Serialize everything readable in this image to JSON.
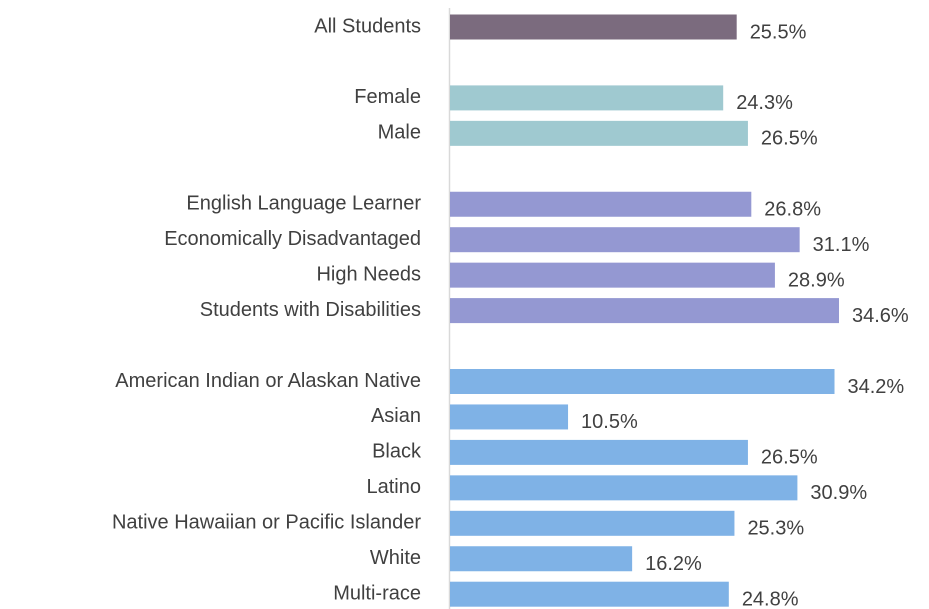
{
  "chart_data": {
    "type": "bar",
    "orientation": "horizontal",
    "categories": [
      "All Students",
      null,
      "Female",
      "Male",
      null,
      "English Language Learner",
      "Economically Disadvantaged",
      "High Needs",
      "Students with Disabilities",
      null,
      "American Indian or Alaskan Native",
      "Asian",
      "Black",
      "Latino",
      "Native Hawaiian or Pacific Islander",
      "White",
      "Multi-race"
    ],
    "values": [
      25.5,
      null,
      24.3,
      26.5,
      null,
      26.8,
      31.1,
      28.9,
      34.6,
      null,
      34.2,
      10.5,
      26.5,
      30.9,
      25.3,
      16.2,
      24.8
    ],
    "value_labels": [
      "25.5%",
      null,
      "24.3%",
      "26.5%",
      null,
      "26.8%",
      "31.1%",
      "28.9%",
      "34.6%",
      null,
      "34.2%",
      "10.5%",
      "26.5%",
      "30.9%",
      "25.3%",
      "16.2%",
      "24.8%"
    ],
    "colors": [
      "#7b6b7e",
      null,
      "#9fc9d0",
      "#9fc9d0",
      null,
      "#9498d2",
      "#9498d2",
      "#9498d2",
      "#9498d2",
      null,
      "#7fb2e6",
      "#7fb2e6",
      "#7fb2e6",
      "#7fb2e6",
      "#7fb2e6",
      "#7fb2e6",
      "#7fb2e6"
    ]
  }
}
